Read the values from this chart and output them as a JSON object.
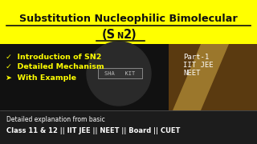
{
  "title_line1": "Substitution Nucleophilic Bimolecular",
  "title_line2_pre": "(S",
  "title_line2_sub": "N",
  "title_line2_post": "2)",
  "title_bg": "#FFFF00",
  "title_text_color": "#111111",
  "body_bg": "#111111",
  "bullet_items": [
    "✓  Introduction of SN2",
    "✓  Detailed Mechanism",
    "➤  With Example"
  ],
  "bullet_color": "#FFFF00",
  "part_line1": "Part-1",
  "part_line2": "IIT JEE",
  "part_line3": "NEET",
  "part_color": "#FFFFFF",
  "footer_line1": "Detailed explanation from basic",
  "footer_line2": "Class 11 & 12 || IIT JEE || NEET || Board || CUET",
  "footer_color": "#FFFFFF",
  "circle_color": "#2a2a2a",
  "watermark_box_color": "#333333",
  "watermark_text": "SHA   KIT",
  "watermark_text_color": "#bbbbbb",
  "underline_color": "#111111",
  "right_photo_color": "#5a3a10",
  "diagonal_color": "#8B6914",
  "footer_bg": "#1c1c1c",
  "sep_line_color": "#555555"
}
